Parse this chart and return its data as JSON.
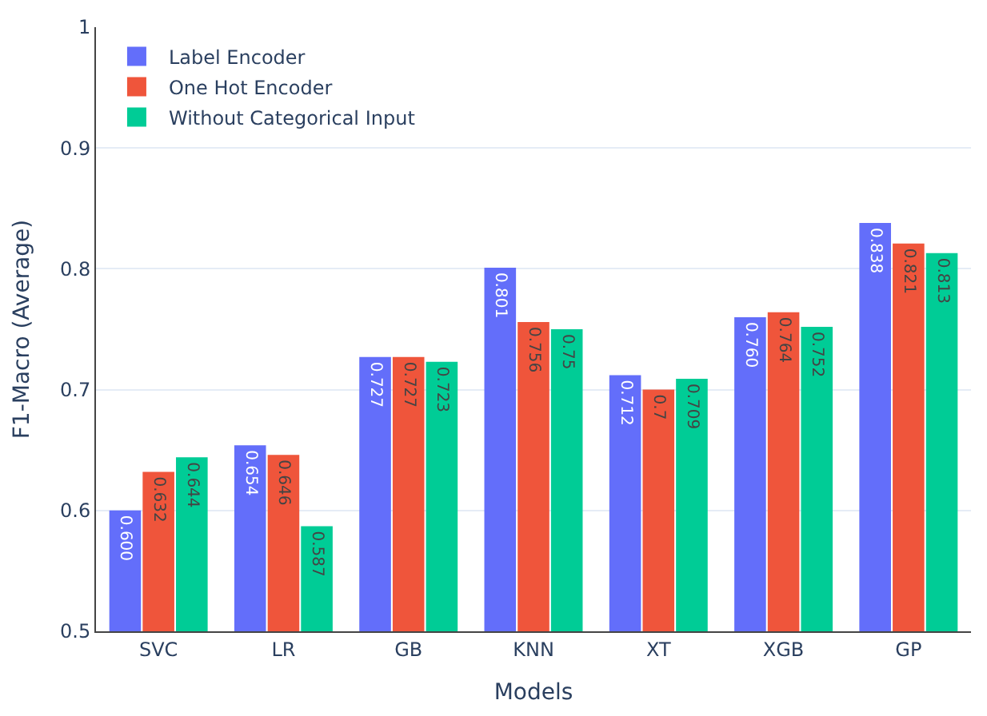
{
  "chart_data": {
    "type": "bar",
    "xlabel": "Models",
    "ylabel": "F1-Macro (Average)",
    "categories": [
      "SVC",
      "LR",
      "GB",
      "KNN",
      "XT",
      "XGB",
      "GP"
    ],
    "series": [
      {
        "name": "Label Encoder",
        "color": "#636efa",
        "values": [
          0.6,
          0.654,
          0.727,
          0.801,
          0.712,
          0.76,
          0.838
        ],
        "value_labels": [
          "0.600",
          "0.654",
          "0.727",
          "0.801",
          "0.712",
          "0.760",
          "0.838"
        ]
      },
      {
        "name": "One Hot Encoder",
        "color": "#ef553b",
        "values": [
          0.632,
          0.646,
          0.727,
          0.756,
          0.7,
          0.764,
          0.821
        ],
        "value_labels": [
          "0.632",
          "0.646",
          "0.727",
          "0.756",
          "0.7",
          "0.764",
          "0.821"
        ]
      },
      {
        "name": "Without Categorical Input",
        "color": "#00cc96",
        "values": [
          0.644,
          0.587,
          0.723,
          0.75,
          0.709,
          0.752,
          0.813
        ],
        "value_labels": [
          "0.644",
          "0.587",
          "0.723",
          "0.75",
          "0.709",
          "0.752",
          "0.813"
        ]
      }
    ],
    "ylim": [
      0.5,
      1
    ],
    "yticks": [
      0.5,
      0.6,
      0.7,
      0.8,
      0.9,
      1
    ],
    "grid": "y",
    "legend": "top left"
  }
}
